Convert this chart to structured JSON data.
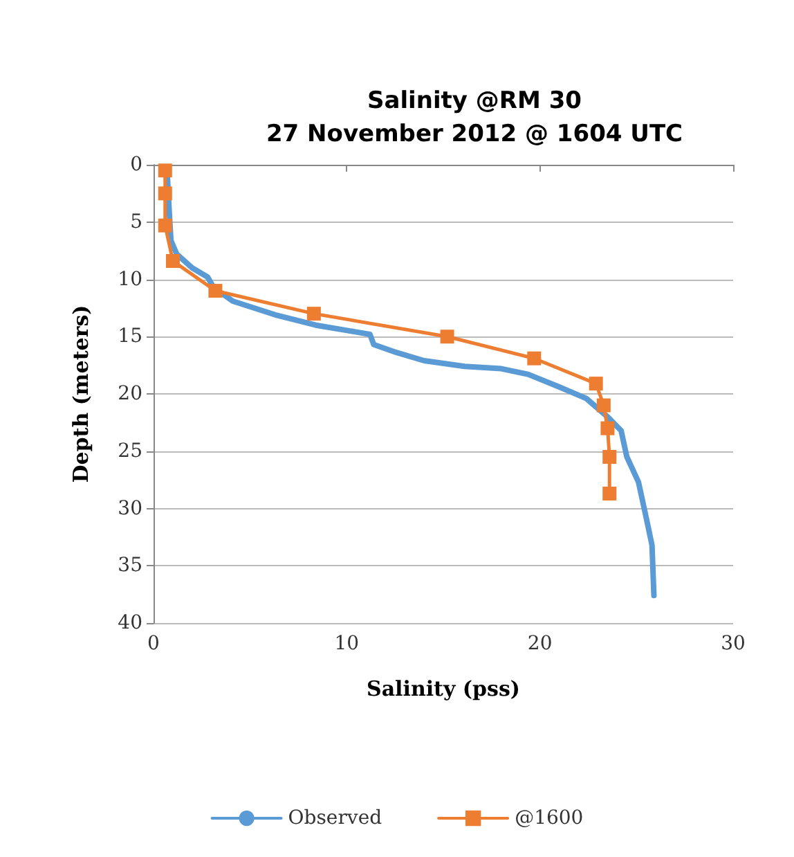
{
  "chart_data": {
    "type": "line",
    "title": "Salinity @RM 30\n27 November 2012 @ 1604 UTC",
    "xlabel": "Salinity (pss)",
    "ylabel": "Depth (meters)",
    "xlim": [
      0,
      30
    ],
    "xticks": [
      0,
      10,
      20,
      30
    ],
    "ylim": [
      40,
      0
    ],
    "yticks": [
      0,
      5,
      10,
      15,
      20,
      25,
      30,
      35,
      40
    ],
    "grid": "y",
    "legend": "bottom",
    "series": [
      {
        "name": "Observed",
        "color": "#5b9bd5",
        "marker": "none",
        "x": [
          0.7,
          0.8,
          0.9,
          1.2,
          2.0,
          2.8,
          3.1,
          4.1,
          6.3,
          8.4,
          10.5,
          11.2,
          11.4,
          12.6,
          14.0,
          16.1,
          18.0,
          19.4,
          21.0,
          22.4,
          23.5,
          24.2,
          24.5,
          25.1,
          25.5,
          25.8,
          25.9
        ],
        "values": [
          0.5,
          3.7,
          6.6,
          7.8,
          9.0,
          9.8,
          10.7,
          11.9,
          13.1,
          14.0,
          14.6,
          14.8,
          15.7,
          16.4,
          17.1,
          17.6,
          17.8,
          18.3,
          19.4,
          20.4,
          22.0,
          23.2,
          25.5,
          27.7,
          30.8,
          33.2,
          37.6
        ]
      },
      {
        "name": "@1600",
        "color": "#ed7d31",
        "marker": "square",
        "x": [
          0.6,
          0.6,
          0.6,
          1.0,
          3.2,
          8.3,
          15.2,
          19.7,
          22.9,
          23.3,
          23.5,
          23.6,
          23.6
        ],
        "values": [
          0.5,
          2.5,
          5.3,
          8.4,
          11.0,
          13.0,
          15.0,
          16.9,
          19.1,
          21.0,
          23.0,
          25.5,
          28.7
        ]
      }
    ]
  }
}
